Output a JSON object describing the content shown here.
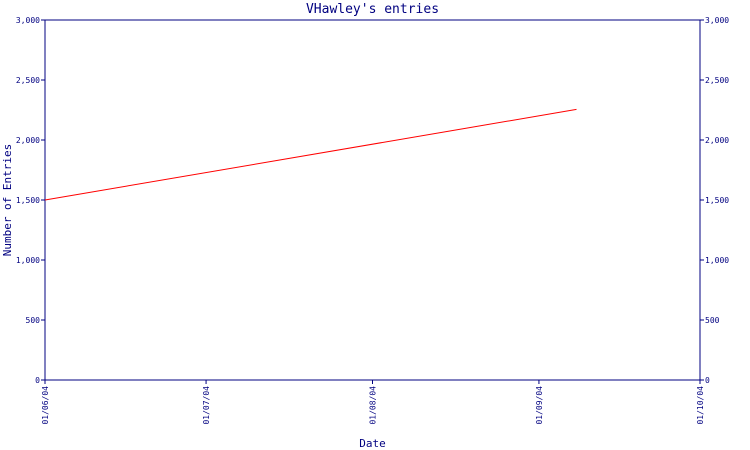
{
  "chart_data": {
    "type": "line",
    "title": "VHawley's entries",
    "xlabel": "Date",
    "ylabel": "Number of Entries",
    "x_ticks": [
      "01/06/04",
      "01/07/04",
      "01/08/04",
      "01/09/04",
      "01/10/04"
    ],
    "y_ticks": [
      "0",
      "500",
      "1,000",
      "1,500",
      "2,000",
      "2,500",
      "3,000"
    ],
    "ylim": [
      0,
      3000
    ],
    "xlim": [
      "2004-06-01",
      "2004-10-01"
    ],
    "grid": false,
    "series": [
      {
        "color": "#ff0000",
        "x": [
          "2004-06-01",
          "2004-09-08"
        ],
        "y": [
          1500,
          2255
        ]
      }
    ],
    "axis_color": "#000080"
  }
}
